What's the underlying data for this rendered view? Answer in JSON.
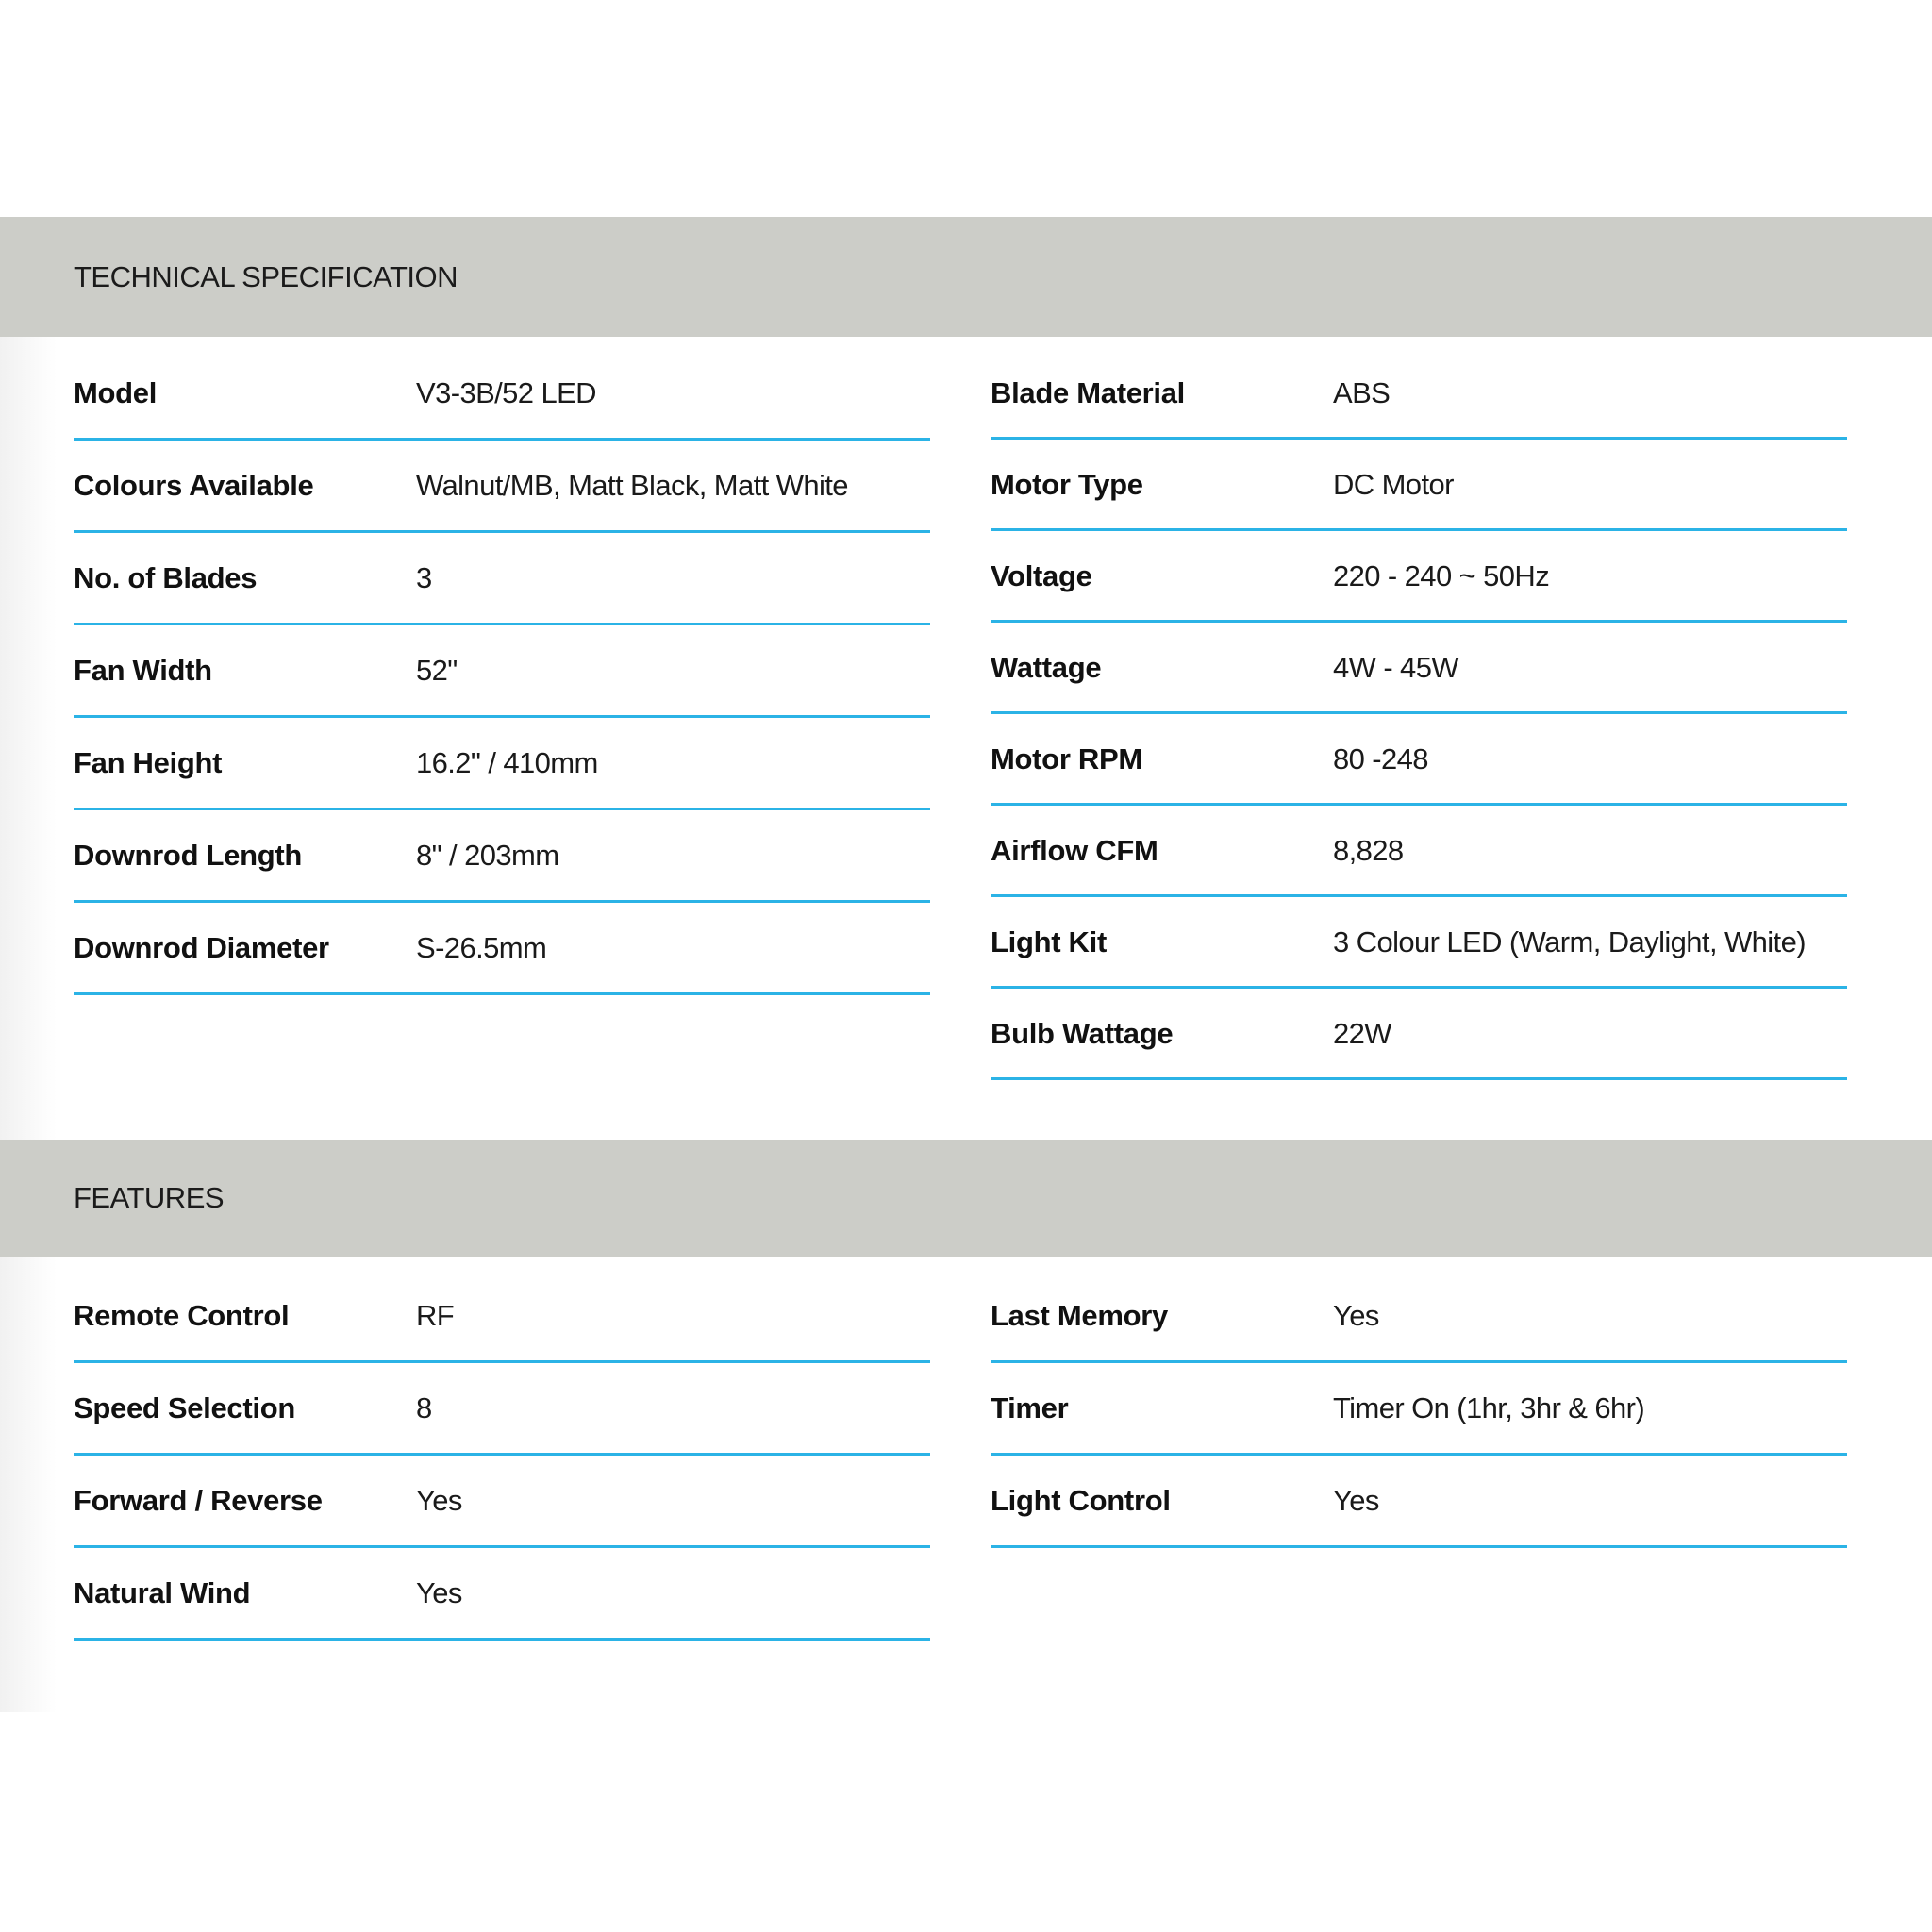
{
  "technical_specification": {
    "title": "TECHNICAL SPECIFICATION",
    "left": [
      {
        "label": "Model",
        "value": "V3-3B/52 LED"
      },
      {
        "label": "Colours Available",
        "value": "Walnut/MB, Matt Black, Matt White"
      },
      {
        "label": "No. of Blades",
        "value": "3"
      },
      {
        "label": "Fan Width",
        "value": "52\""
      },
      {
        "label": "Fan Height",
        "value": "16.2\" / 410mm"
      },
      {
        "label": "Downrod Length",
        "value": "8\" / 203mm"
      },
      {
        "label": "Downrod Diameter",
        "value": "S-26.5mm"
      }
    ],
    "right": [
      {
        "label": "Blade Material",
        "value": "ABS"
      },
      {
        "label": "Motor Type",
        "value": "DC Motor"
      },
      {
        "label": "Voltage",
        "value": "220 - 240 ~ 50Hz"
      },
      {
        "label": "Wattage",
        "value": "4W - 45W"
      },
      {
        "label": "Motor RPM",
        "value": "80 -248"
      },
      {
        "label": "Airflow CFM",
        "value": "8,828"
      },
      {
        "label": "Light Kit",
        "value": "3 Colour LED (Warm, Daylight, White)"
      },
      {
        "label": "Bulb Wattage",
        "value": "22W"
      }
    ]
  },
  "features": {
    "title": "FEATURES",
    "left": [
      {
        "label": "Remote Control",
        "value": "RF"
      },
      {
        "label": "Speed Selection",
        "value": "8"
      },
      {
        "label": "Forward / Reverse",
        "value": "Yes"
      },
      {
        "label": "Natural Wind",
        "value": "Yes"
      }
    ],
    "right": [
      {
        "label": "Last Memory",
        "value": "Yes"
      },
      {
        "label": "Timer",
        "value": "Timer On (1hr, 3hr & 6hr)"
      },
      {
        "label": "Light Control",
        "value": "Yes"
      }
    ]
  },
  "colors": {
    "band": "#cccdc8",
    "divider": "#2bb3e6"
  }
}
